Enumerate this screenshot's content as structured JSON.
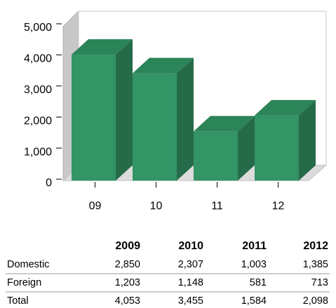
{
  "chart_data": {
    "type": "bar3d",
    "categories": [
      "09",
      "10",
      "11",
      "12"
    ],
    "values": [
      4053,
      3455,
      1584,
      2098
    ],
    "color": "#339466",
    "ylim": [
      0,
      5000
    ],
    "yticks": [
      0,
      {
        "value": 1000,
        "label": "1,000"
      },
      {
        "value": 2000,
        "label": "2,000"
      },
      {
        "value": 3000,
        "label": "3,000"
      },
      {
        "value": 4000,
        "label": "4,000"
      },
      {
        "value": 5000,
        "label": "5,000"
      }
    ]
  },
  "table": {
    "columns": [
      "2009",
      "2010",
      "2011",
      "2012"
    ],
    "rows": [
      {
        "label": "Domestic",
        "cells": [
          "2,850",
          "2,307",
          "1,003",
          "1,385"
        ]
      },
      {
        "label": "Foreign",
        "cells": [
          "1,203",
          "1,148",
          "581",
          "713"
        ]
      },
      {
        "label": "Total",
        "cells": [
          "4,053",
          "3,455",
          "1,584",
          "2,098"
        ]
      }
    ]
  }
}
